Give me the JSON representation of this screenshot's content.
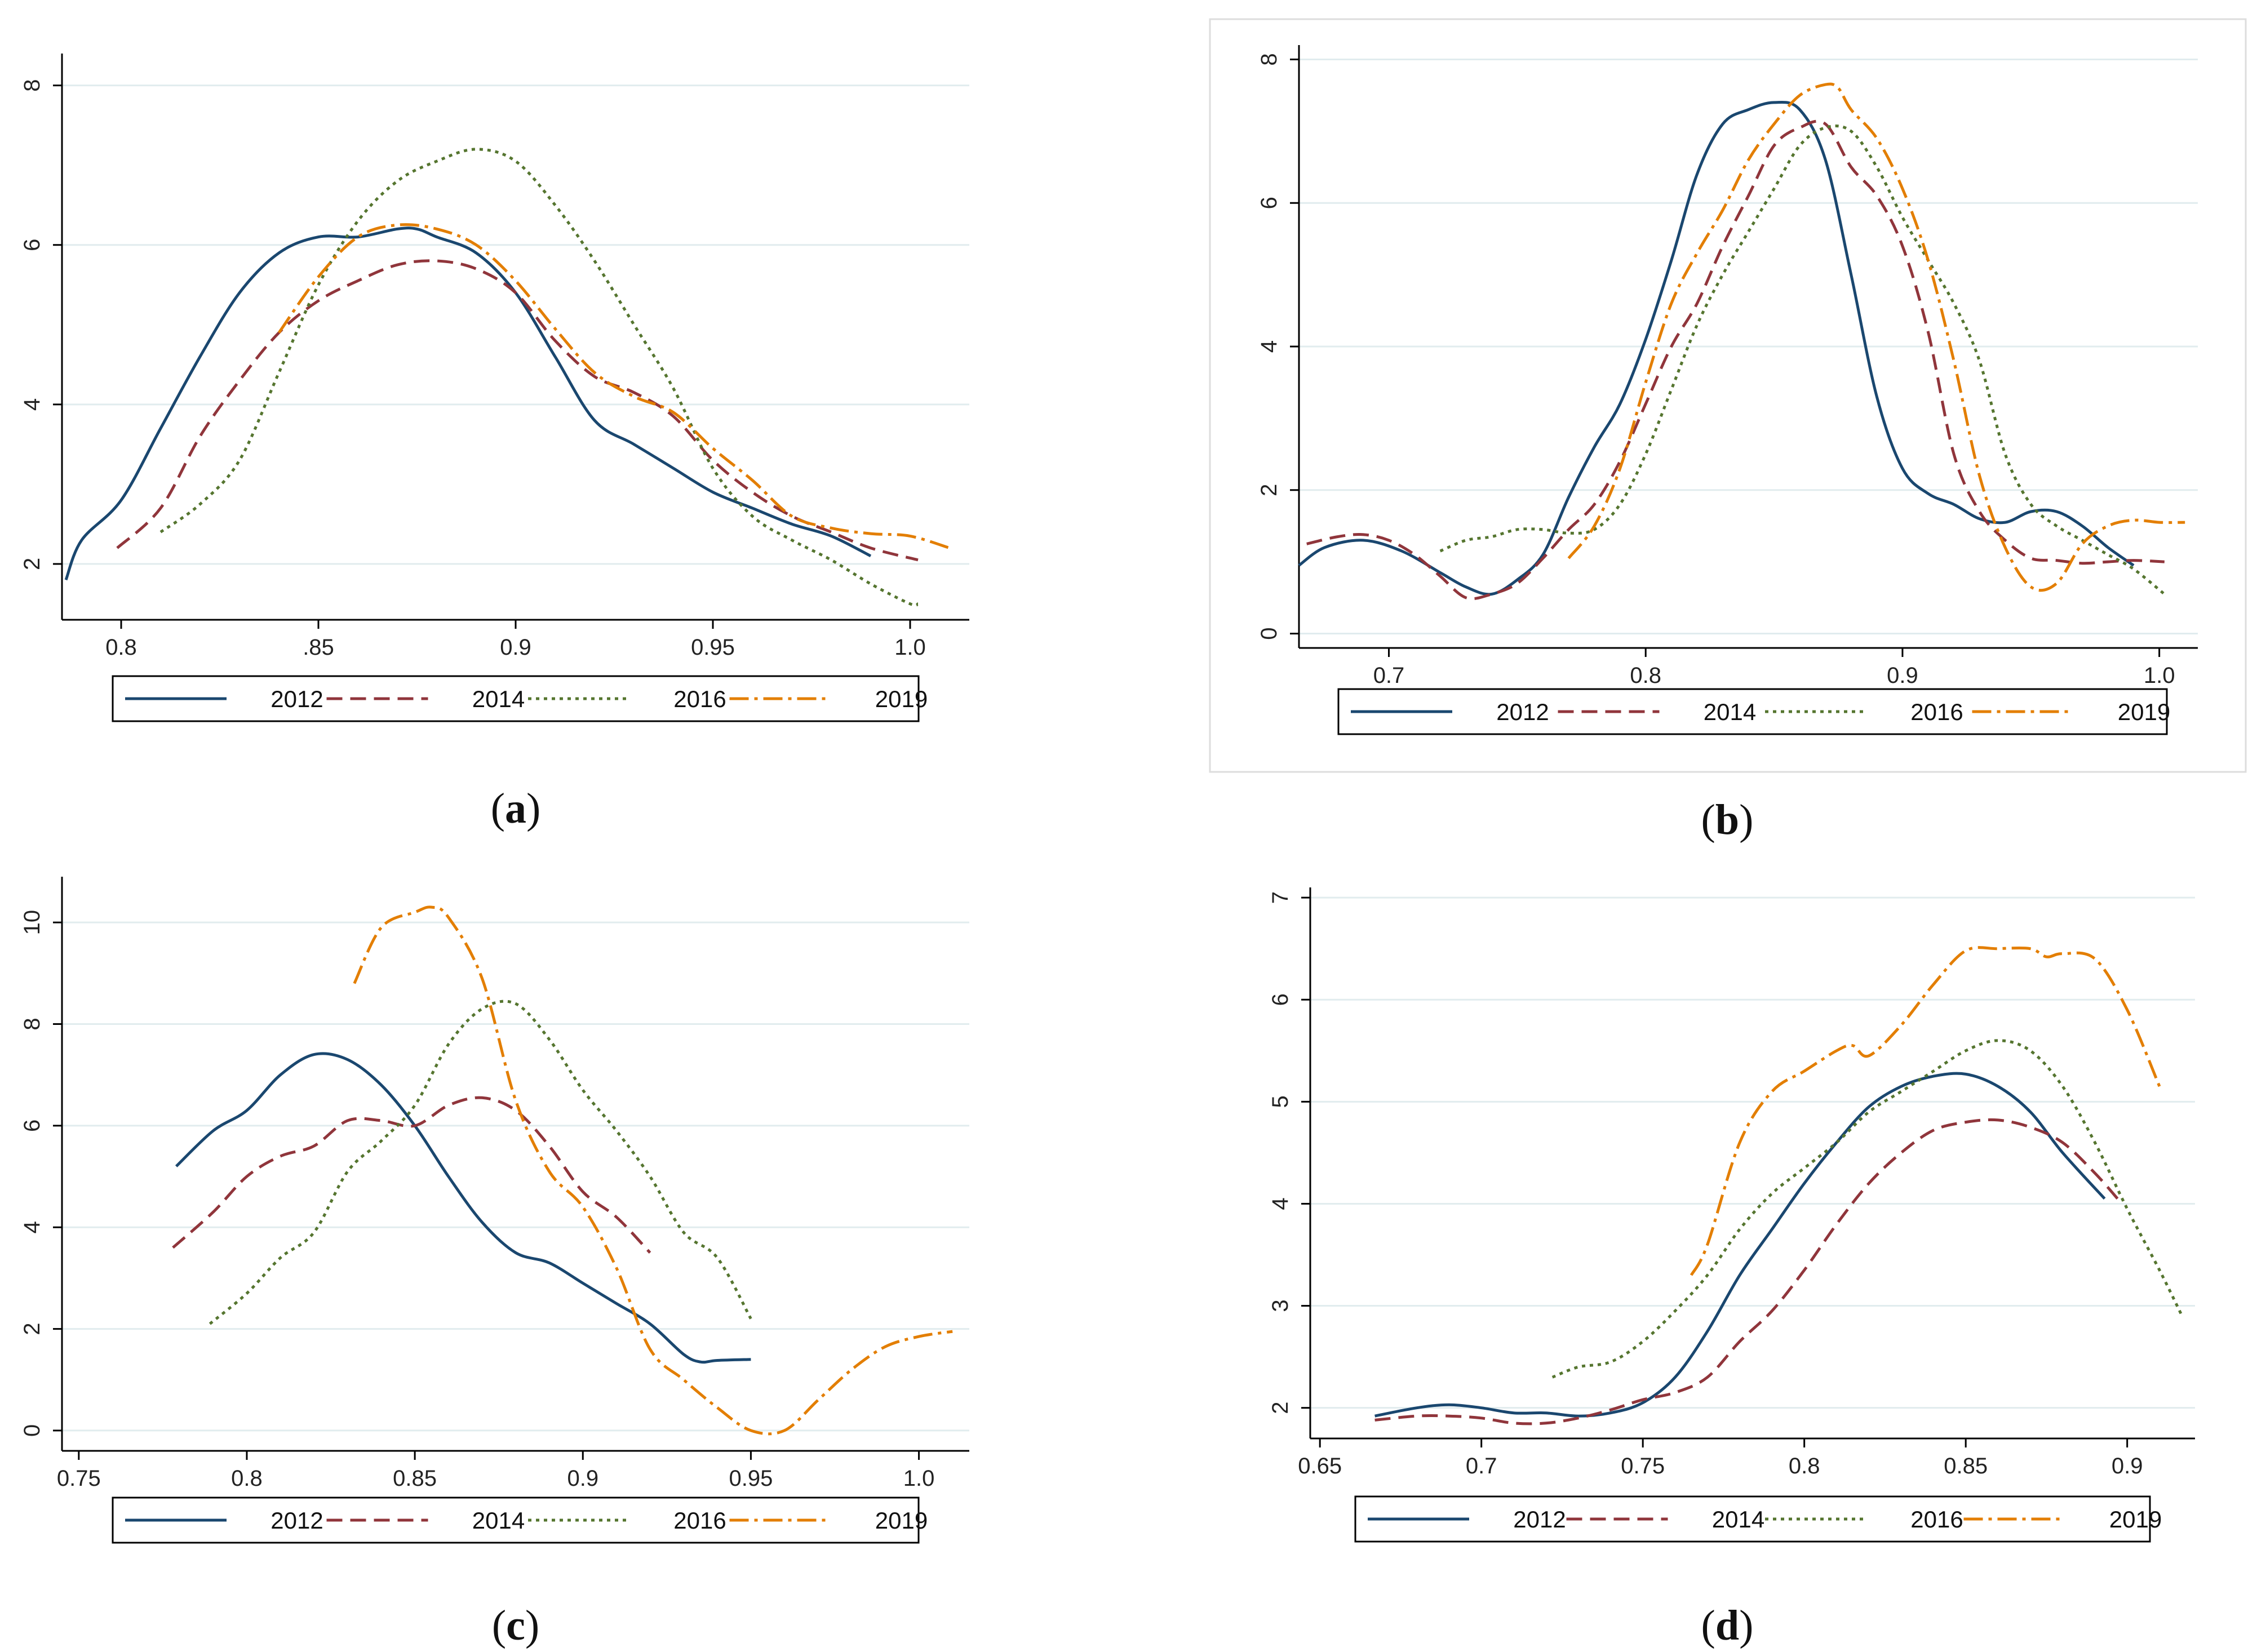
{
  "colors": {
    "2012": "#1a476f",
    "2014": "#90353b",
    "2016": "#55752f",
    "2019": "#e37e00"
  },
  "chart_data": [
    {
      "type": "line",
      "caption": "a",
      "xlim": [
        0.785,
        1.015
      ],
      "ylim": [
        1.3,
        8.4
      ],
      "xticks": [
        0.8,
        0.85,
        0.9,
        0.95,
        1.0
      ],
      "xtick_labels": [
        "0.8",
        ".85",
        "0.9",
        "0.95",
        "1.0"
      ],
      "yticks": [
        2,
        4,
        6,
        8
      ],
      "ytick_labels": [
        "2",
        "4",
        "6",
        "8"
      ],
      "legend": [
        "2012",
        "2014",
        "2016",
        "2019"
      ],
      "series": [
        {
          "name": "2012",
          "x": [
            0.786,
            0.79,
            0.8,
            0.81,
            0.82,
            0.83,
            0.84,
            0.85,
            0.86,
            0.87,
            0.875,
            0.88,
            0.89,
            0.9,
            0.91,
            0.92,
            0.93,
            0.94,
            0.95,
            0.96,
            0.97,
            0.98,
            0.99
          ],
          "y": [
            1.8,
            2.3,
            2.8,
            3.7,
            4.6,
            5.4,
            5.9,
            6.1,
            6.1,
            6.2,
            6.2,
            6.1,
            5.9,
            5.4,
            4.6,
            3.8,
            3.5,
            3.2,
            2.9,
            2.7,
            2.5,
            2.35,
            2.1
          ]
        },
        {
          "name": "2014",
          "x": [
            0.799,
            0.81,
            0.82,
            0.83,
            0.84,
            0.85,
            0.86,
            0.87,
            0.88,
            0.89,
            0.9,
            0.91,
            0.92,
            0.93,
            0.94,
            0.95,
            0.96,
            0.97,
            0.98,
            0.99,
            1.002
          ],
          "y": [
            2.2,
            2.7,
            3.6,
            4.3,
            4.9,
            5.3,
            5.55,
            5.75,
            5.8,
            5.7,
            5.4,
            4.8,
            4.35,
            4.15,
            3.85,
            3.3,
            2.9,
            2.6,
            2.4,
            2.2,
            2.05
          ]
        },
        {
          "name": "2016",
          "x": [
            0.81,
            0.82,
            0.83,
            0.84,
            0.85,
            0.86,
            0.87,
            0.88,
            0.89,
            0.9,
            0.91,
            0.92,
            0.93,
            0.94,
            0.95,
            0.96,
            0.97,
            0.98,
            0.99,
            1.0,
            1.002
          ],
          "y": [
            2.4,
            2.75,
            3.3,
            4.4,
            5.5,
            6.3,
            6.8,
            7.05,
            7.2,
            7.05,
            6.5,
            5.8,
            5.0,
            4.2,
            3.2,
            2.6,
            2.3,
            2.05,
            1.75,
            1.5,
            1.5
          ]
        },
        {
          "name": "2019",
          "x": [
            0.84,
            0.85,
            0.86,
            0.87,
            0.88,
            0.89,
            0.9,
            0.91,
            0.92,
            0.93,
            0.94,
            0.95,
            0.96,
            0.97,
            0.98,
            0.99,
            1.0,
            1.01
          ],
          "y": [
            4.9,
            5.6,
            6.1,
            6.25,
            6.2,
            6.0,
            5.55,
            4.95,
            4.4,
            4.1,
            3.9,
            3.45,
            3.05,
            2.6,
            2.45,
            2.38,
            2.35,
            2.2
          ]
        }
      ]
    },
    {
      "type": "line",
      "caption": "b",
      "xlim": [
        0.665,
        1.015
      ],
      "ylim": [
        -0.2,
        8.2
      ],
      "xticks": [
        0.7,
        0.8,
        0.9,
        1.0
      ],
      "xtick_labels": [
        "0.7",
        "0.8",
        "0.9",
        "1.0"
      ],
      "yticks": [
        0,
        2,
        4,
        6,
        8
      ],
      "ytick_labels": [
        "0",
        "2",
        "4",
        "6",
        "8"
      ],
      "legend": [
        "2012",
        "2014",
        "2016",
        "2019"
      ],
      "series": [
        {
          "name": "2012",
          "x": [
            0.665,
            0.675,
            0.69,
            0.705,
            0.72,
            0.73,
            0.74,
            0.75,
            0.76,
            0.77,
            0.78,
            0.79,
            0.8,
            0.81,
            0.82,
            0.83,
            0.84,
            0.85,
            0.86,
            0.87,
            0.88,
            0.89,
            0.9,
            0.91,
            0.92,
            0.93,
            0.94,
            0.95,
            0.96,
            0.97,
            0.98,
            0.99
          ],
          "y": [
            0.95,
            1.2,
            1.3,
            1.15,
            0.85,
            0.65,
            0.55,
            0.75,
            1.1,
            1.9,
            2.6,
            3.2,
            4.1,
            5.2,
            6.4,
            7.1,
            7.3,
            7.4,
            7.3,
            6.6,
            5.0,
            3.3,
            2.3,
            1.95,
            1.8,
            1.6,
            1.55,
            1.7,
            1.7,
            1.5,
            1.2,
            0.95
          ]
        },
        {
          "name": "2014",
          "x": [
            0.668,
            0.68,
            0.69,
            0.7,
            0.71,
            0.72,
            0.73,
            0.74,
            0.75,
            0.76,
            0.77,
            0.78,
            0.79,
            0.8,
            0.81,
            0.82,
            0.83,
            0.84,
            0.85,
            0.86,
            0.87,
            0.88,
            0.89,
            0.9,
            0.91,
            0.92,
            0.93,
            0.94,
            0.95,
            0.96,
            0.97,
            0.98,
            0.99,
            1.002
          ],
          "y": [
            1.25,
            1.35,
            1.38,
            1.3,
            1.1,
            0.8,
            0.5,
            0.55,
            0.7,
            1.05,
            1.45,
            1.8,
            2.4,
            3.2,
            4.0,
            4.6,
            5.4,
            6.1,
            6.8,
            7.05,
            7.1,
            6.5,
            6.1,
            5.4,
            4.2,
            2.5,
            1.7,
            1.3,
            1.05,
            1.02,
            0.98,
            1.0,
            1.02,
            1.0
          ]
        },
        {
          "name": "2016",
          "x": [
            0.72,
            0.73,
            0.74,
            0.75,
            0.76,
            0.77,
            0.78,
            0.79,
            0.8,
            0.81,
            0.82,
            0.83,
            0.84,
            0.85,
            0.86,
            0.87,
            0.88,
            0.89,
            0.9,
            0.91,
            0.92,
            0.93,
            0.94,
            0.95,
            0.96,
            0.97,
            0.98,
            0.99,
            1.002
          ],
          "y": [
            1.15,
            1.3,
            1.35,
            1.45,
            1.45,
            1.4,
            1.45,
            1.8,
            2.5,
            3.4,
            4.3,
            5.0,
            5.6,
            6.2,
            6.8,
            7.05,
            7.0,
            6.5,
            5.8,
            5.2,
            4.6,
            3.8,
            2.5,
            1.8,
            1.5,
            1.3,
            1.1,
            0.9,
            0.55
          ]
        },
        {
          "name": "2019",
          "x": [
            0.77,
            0.78,
            0.79,
            0.8,
            0.81,
            0.82,
            0.83,
            0.84,
            0.85,
            0.86,
            0.87,
            0.875,
            0.88,
            0.89,
            0.9,
            0.91,
            0.92,
            0.93,
            0.94,
            0.95,
            0.96,
            0.97,
            0.98,
            0.99,
            1.0,
            1.01
          ],
          "y": [
            1.05,
            1.5,
            2.3,
            3.5,
            4.6,
            5.3,
            5.9,
            6.6,
            7.1,
            7.5,
            7.65,
            7.6,
            7.3,
            6.9,
            6.2,
            5.2,
            3.8,
            2.2,
            1.2,
            0.65,
            0.7,
            1.25,
            1.5,
            1.58,
            1.55,
            1.55
          ]
        }
      ]
    },
    {
      "type": "line",
      "caption": "c",
      "xlim": [
        0.745,
        1.015
      ],
      "ylim": [
        -0.4,
        10.9
      ],
      "xticks": [
        0.75,
        0.8,
        0.85,
        0.9,
        0.95,
        1.0
      ],
      "xtick_labels": [
        "0.75",
        "0.8",
        "0.85",
        "0.9",
        "0.95",
        "1.0"
      ],
      "yticks": [
        0,
        2,
        4,
        6,
        8,
        10
      ],
      "ytick_labels": [
        "0",
        "2",
        "4",
        "6",
        "8",
        "10"
      ],
      "legend": [
        "2012",
        "2014",
        "2016",
        "2019"
      ],
      "series": [
        {
          "name": "2012",
          "x": [
            0.779,
            0.79,
            0.8,
            0.81,
            0.82,
            0.83,
            0.84,
            0.85,
            0.86,
            0.87,
            0.88,
            0.89,
            0.9,
            0.91,
            0.92,
            0.93,
            0.935,
            0.94,
            0.95
          ],
          "y": [
            5.2,
            5.9,
            6.3,
            7.0,
            7.4,
            7.3,
            6.8,
            6.0,
            5.0,
            4.1,
            3.5,
            3.3,
            2.9,
            2.5,
            2.1,
            1.5,
            1.35,
            1.38,
            1.4
          ]
        },
        {
          "name": "2014",
          "x": [
            0.778,
            0.79,
            0.8,
            0.81,
            0.82,
            0.83,
            0.84,
            0.85,
            0.86,
            0.87,
            0.88,
            0.89,
            0.9,
            0.91,
            0.92
          ],
          "y": [
            3.6,
            4.3,
            5.0,
            5.4,
            5.6,
            6.1,
            6.1,
            6.0,
            6.4,
            6.55,
            6.3,
            5.6,
            4.7,
            4.2,
            3.5
          ]
        },
        {
          "name": "2016",
          "x": [
            0.789,
            0.8,
            0.81,
            0.82,
            0.83,
            0.84,
            0.85,
            0.86,
            0.87,
            0.88,
            0.89,
            0.9,
            0.91,
            0.92,
            0.93,
            0.94,
            0.95
          ],
          "y": [
            2.1,
            2.7,
            3.4,
            3.9,
            5.1,
            5.7,
            6.4,
            7.6,
            8.3,
            8.4,
            7.7,
            6.7,
            5.9,
            5.0,
            3.9,
            3.4,
            2.2
          ]
        },
        {
          "name": "2019",
          "x": [
            0.832,
            0.84,
            0.85,
            0.855,
            0.86,
            0.87,
            0.88,
            0.89,
            0.9,
            0.91,
            0.92,
            0.93,
            0.94,
            0.95,
            0.96,
            0.97,
            0.98,
            0.99,
            1.0,
            1.01
          ],
          "y": [
            8.8,
            9.9,
            10.2,
            10.3,
            10.1,
            8.9,
            6.5,
            5.1,
            4.4,
            3.2,
            1.6,
            1.0,
            0.45,
            0.0,
            0.0,
            0.6,
            1.2,
            1.65,
            1.85,
            1.95
          ]
        }
      ]
    },
    {
      "type": "line",
      "caption": "d",
      "xlim": [
        0.647,
        0.921
      ],
      "ylim": [
        1.7,
        7.1
      ],
      "xticks": [
        0.65,
        0.7,
        0.75,
        0.8,
        0.85,
        0.9
      ],
      "xtick_labels": [
        "0.65",
        "0.7",
        "0.75",
        "0.8",
        "0.85",
        "0.9"
      ],
      "yticks": [
        2,
        3,
        4,
        5,
        6,
        7
      ],
      "ytick_labels": [
        "2",
        "3",
        "4",
        "5",
        "6",
        "7"
      ],
      "legend": [
        "2012",
        "2014",
        "2016",
        "2019"
      ],
      "series": [
        {
          "name": "2012",
          "x": [
            0.667,
            0.68,
            0.69,
            0.7,
            0.71,
            0.72,
            0.73,
            0.74,
            0.75,
            0.76,
            0.77,
            0.78,
            0.79,
            0.8,
            0.81,
            0.82,
            0.83,
            0.84,
            0.85,
            0.86,
            0.87,
            0.88,
            0.893
          ],
          "y": [
            1.92,
            2.0,
            2.03,
            2.0,
            1.95,
            1.95,
            1.92,
            1.95,
            2.05,
            2.3,
            2.75,
            3.3,
            3.75,
            4.2,
            4.6,
            4.95,
            5.15,
            5.25,
            5.27,
            5.15,
            4.9,
            4.5,
            4.05
          ]
        },
        {
          "name": "2014",
          "x": [
            0.667,
            0.68,
            0.69,
            0.7,
            0.71,
            0.72,
            0.73,
            0.74,
            0.75,
            0.76,
            0.77,
            0.78,
            0.79,
            0.8,
            0.81,
            0.82,
            0.83,
            0.84,
            0.85,
            0.86,
            0.87,
            0.88,
            0.89,
            0.897
          ],
          "y": [
            1.88,
            1.92,
            1.92,
            1.9,
            1.85,
            1.85,
            1.9,
            1.98,
            2.08,
            2.15,
            2.3,
            2.65,
            2.95,
            3.35,
            3.8,
            4.2,
            4.5,
            4.72,
            4.8,
            4.82,
            4.75,
            4.6,
            4.3,
            4.05
          ]
        },
        {
          "name": "2016",
          "x": [
            0.722,
            0.73,
            0.74,
            0.75,
            0.76,
            0.77,
            0.78,
            0.79,
            0.8,
            0.81,
            0.82,
            0.83,
            0.84,
            0.85,
            0.86,
            0.87,
            0.88,
            0.89,
            0.9,
            0.91,
            0.917
          ],
          "y": [
            2.3,
            2.4,
            2.45,
            2.65,
            2.95,
            3.3,
            3.75,
            4.1,
            4.35,
            4.6,
            4.9,
            5.1,
            5.3,
            5.5,
            5.6,
            5.5,
            5.15,
            4.6,
            3.95,
            3.35,
            2.9
          ]
        },
        {
          "name": "2019",
          "x": [
            0.765,
            0.77,
            0.78,
            0.79,
            0.8,
            0.81,
            0.815,
            0.82,
            0.83,
            0.84,
            0.85,
            0.86,
            0.87,
            0.875,
            0.88,
            0.89,
            0.9,
            0.91
          ],
          "y": [
            3.3,
            3.6,
            4.6,
            5.1,
            5.3,
            5.5,
            5.55,
            5.45,
            5.75,
            6.15,
            6.48,
            6.5,
            6.5,
            6.42,
            6.45,
            6.4,
            5.9,
            5.15
          ]
        }
      ]
    }
  ]
}
